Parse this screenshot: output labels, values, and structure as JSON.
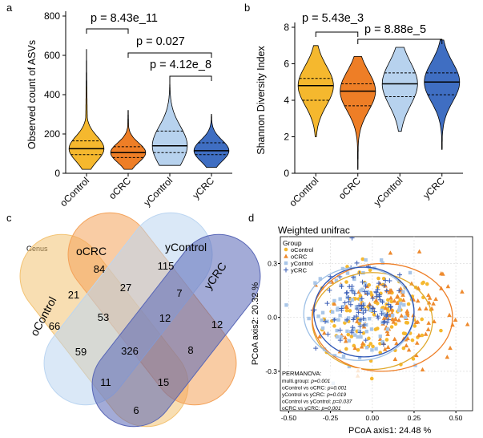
{
  "panels": {
    "a": "a",
    "b": "b",
    "c": "c",
    "d": "d"
  },
  "colors": {
    "oControl": "#F5B82E",
    "oCRC": "#EE7E26",
    "yControl": "#B7D2EE",
    "yCRC": "#3F6EC2",
    "venn_oControl": "#F3C373",
    "venn_oCRC": "#F4A259",
    "venn_yControl": "#BBD5F1",
    "venn_yCRC": "#5866B6"
  },
  "chart_data": [
    {
      "type": "violin",
      "panel": "a",
      "ylabel": "Observed count of ASVs",
      "categories": [
        "oControl",
        "oCRC",
        "yControl",
        "yCRC"
      ],
      "ylim": [
        0,
        800
      ],
      "yticks": [
        0,
        200,
        400,
        600,
        800
      ],
      "series": [
        {
          "name": "oControl",
          "min": 20,
          "q1": 95,
          "median": 125,
          "q3": 165,
          "max": 630
        },
        {
          "name": "oCRC",
          "min": 20,
          "q1": 80,
          "median": 105,
          "q3": 135,
          "max": 320
        },
        {
          "name": "yControl",
          "min": 40,
          "q1": 105,
          "median": 140,
          "q3": 215,
          "max": 470
        },
        {
          "name": "yCRC",
          "min": 30,
          "q1": 95,
          "median": 115,
          "q3": 155,
          "max": 300
        }
      ],
      "annotations": [
        {
          "text": "p = 8.43e_11",
          "from": "oControl",
          "to": "oCRC"
        },
        {
          "text": "p = 0.027",
          "from": "oCRC",
          "to": "yCRC"
        },
        {
          "text": "p = 4.12e_8",
          "from": "yControl",
          "to": "yCRC"
        }
      ]
    },
    {
      "type": "violin",
      "panel": "b",
      "ylabel": "Shannon Diversity Index",
      "categories": [
        "oControl",
        "oCRC",
        "yControl",
        "yCRC"
      ],
      "ylim": [
        0,
        8
      ],
      "yticks": [
        0,
        2,
        4,
        6,
        8
      ],
      "series": [
        {
          "name": "oControl",
          "min": 2.0,
          "q1": 4.0,
          "median": 4.8,
          "q3": 5.2,
          "max": 7.0
        },
        {
          "name": "oCRC",
          "min": 0.2,
          "q1": 3.7,
          "median": 4.5,
          "q3": 4.9,
          "max": 6.4
        },
        {
          "name": "yControl",
          "min": 2.3,
          "q1": 4.2,
          "median": 4.9,
          "q3": 5.5,
          "max": 6.9
        },
        {
          "name": "yCRC",
          "min": 1.3,
          "q1": 4.3,
          "median": 5.0,
          "q3": 5.5,
          "max": 7.3
        }
      ],
      "annotations": [
        {
          "text": "p = 5.43e_3",
          "from": "oControl",
          "to": "oCRC"
        },
        {
          "text": "p = 8.88e_5",
          "from": "oCRC",
          "to": "yCRC"
        }
      ]
    },
    {
      "type": "venn",
      "panel": "c",
      "title": "Genus",
      "sets": [
        "oControl",
        "oCRC",
        "yControl",
        "yCRC"
      ],
      "regions": [
        {
          "sets": [
            "oControl"
          ],
          "value": 66
        },
        {
          "sets": [
            "oCRC"
          ],
          "value": 84
        },
        {
          "sets": [
            "yControl"
          ],
          "value": 115
        },
        {
          "sets": [
            "yCRC"
          ],
          "value": 12
        },
        {
          "sets": [
            "oControl",
            "oCRC"
          ],
          "value": 21
        },
        {
          "sets": [
            "oCRC",
            "yControl"
          ],
          "value": 27
        },
        {
          "sets": [
            "yControl",
            "yCRC"
          ],
          "value": 7
        },
        {
          "sets": [
            "oControl",
            "oCRC",
            "yControl"
          ],
          "value": 53
        },
        {
          "sets": [
            "oCRC",
            "yControl",
            "yCRC"
          ],
          "value": 12
        },
        {
          "sets": [
            "oControl",
            "yControl"
          ],
          "value": 59
        },
        {
          "sets": [
            "oControl",
            "oCRC",
            "yControl",
            "yCRC"
          ],
          "value": 326
        },
        {
          "sets": [
            "oCRC",
            "yCRC"
          ],
          "value": 8
        },
        {
          "sets": [
            "oControl",
            "yControl",
            "yCRC"
          ],
          "value": 11
        },
        {
          "sets": [
            "oControl",
            "oCRC",
            "yCRC"
          ],
          "value": 15
        },
        {
          "sets": [
            "oControl",
            "yCRC"
          ],
          "value": 6
        }
      ]
    },
    {
      "type": "scatter",
      "panel": "d",
      "title": "Weighted unifrac",
      "xlabel": "PCoA axis1:  24.48 %",
      "ylabel": "PCoA axis2:  20.32 %",
      "xlim": [
        -0.55,
        0.6
      ],
      "ylim": [
        -0.52,
        0.45
      ],
      "xticks": [
        "-0.50",
        "-0.25",
        "0.00",
        "0.25",
        "0.50"
      ],
      "yticks": [
        "-0.3",
        "0.0",
        "0.3"
      ],
      "legend": {
        "title": "Group",
        "placement": "top-left",
        "items": [
          {
            "name": "oControl",
            "marker": "circle"
          },
          {
            "name": "oCRC",
            "marker": "triangle"
          },
          {
            "name": "yControl",
            "marker": "square"
          },
          {
            "name": "yCRC",
            "marker": "plus"
          }
        ]
      },
      "ellipses": [
        {
          "group": "oControl",
          "cx": 0.0,
          "cy": -0.02,
          "rx": 0.36,
          "ry": 0.27
        },
        {
          "group": "oCRC",
          "cx": 0.06,
          "cy": 0.0,
          "rx": 0.42,
          "ry": 0.3
        },
        {
          "group": "yControl",
          "cx": -0.08,
          "cy": 0.02,
          "rx": 0.33,
          "ry": 0.26
        },
        {
          "group": "yCRC",
          "cx": -0.05,
          "cy": 0.03,
          "rx": 0.3,
          "ry": 0.25
        }
      ],
      "group_centers": [
        {
          "group": "oControl",
          "x": 0.05,
          "y": 0.0,
          "sx": 0.17,
          "sy": 0.13,
          "n": 110
        },
        {
          "group": "oCRC",
          "x": 0.12,
          "y": 0.02,
          "sx": 0.2,
          "sy": 0.15,
          "n": 120
        },
        {
          "group": "yControl",
          "x": -0.08,
          "y": 0.04,
          "sx": 0.15,
          "sy": 0.12,
          "n": 90
        },
        {
          "group": "yCRC",
          "x": -0.06,
          "y": 0.05,
          "sx": 0.14,
          "sy": 0.12,
          "n": 90
        }
      ],
      "permanova": {
        "title": "PERMANOVA:",
        "lines": [
          {
            "label": "multi.group: ",
            "p": "p=0.001"
          },
          {
            "label": "oControl vs oCRC: ",
            "p": "p=0.001"
          },
          {
            "label": "yControl vs yCRC: ",
            "p": "p=0.019"
          },
          {
            "label": "oControl vs yControl: ",
            "p": "p=0.037"
          },
          {
            "label": "oCRC vs yCRC: ",
            "p": "p=0.001"
          }
        ]
      }
    }
  ]
}
